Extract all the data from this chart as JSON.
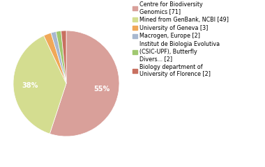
{
  "legend_labels": [
    "Centre for Biodiversity\nGenomics [71]",
    "Mined from GenBank, NCBI [49]",
    "University of Geneva [3]",
    "Macrogen, Europe [2]",
    "Institut de Biologia Evolutiva\n(CSIC-UPF), Butterfly\nDivers... [2]",
    "Biology department of\nUniversity of Florence [2]"
  ],
  "values": [
    71,
    49,
    3,
    2,
    2,
    2
  ],
  "colors": [
    "#d9a09a",
    "#d4dd90",
    "#f0a858",
    "#a8b8d0",
    "#a0c870",
    "#c87060"
  ],
  "pct_threshold": 4,
  "background_color": "#ffffff",
  "text_color": "white",
  "fontsize_pct": 7,
  "fontsize_legend": 5.8
}
